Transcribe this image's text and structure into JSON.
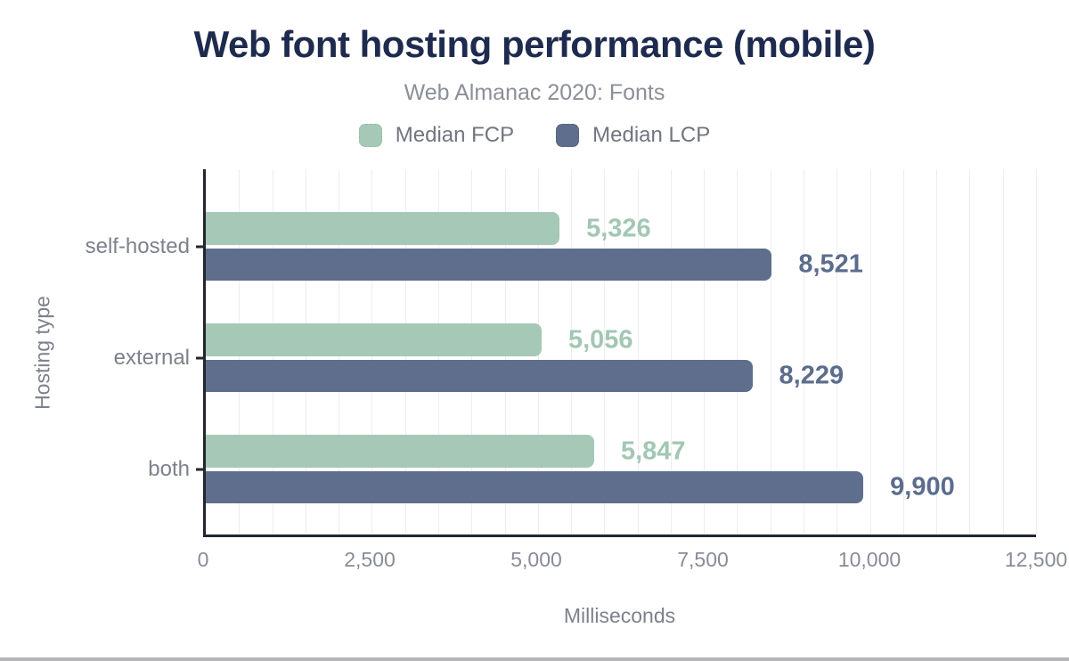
{
  "header": {
    "title": "Web font hosting performance (mobile)",
    "subtitle": "Web Almanac 2020: Fonts"
  },
  "colors": {
    "title": "#1e2b4e",
    "fcp_green": "#a5c9b6",
    "lcp_blue": "#5e6e8c",
    "fcp_label_text": "#a2c7b3",
    "lcp_label_text": "#5c6c8d",
    "axis_line": "#23262e",
    "gridline": "#ededf0",
    "muted_text": "#7c818b"
  },
  "legend": {
    "items": [
      {
        "label": "Median FCP",
        "color": "#a5c9b6"
      },
      {
        "label": "Median LCP",
        "color": "#5e6e8c"
      }
    ]
  },
  "chart_data": {
    "type": "bar",
    "orientation": "horizontal",
    "title": "Web font hosting performance (mobile)",
    "subtitle": "Web Almanac 2020: Fonts",
    "categories": [
      "self-hosted",
      "external",
      "both"
    ],
    "series": [
      {
        "name": "Median FCP",
        "color": "#a5c9b6",
        "label_color": "#a2c7b3",
        "values": [
          5326,
          5056,
          5847
        ],
        "value_labels": [
          "5,326",
          "5,056",
          "5,847"
        ]
      },
      {
        "name": "Median LCP",
        "color": "#5e6e8c",
        "label_color": "#5c6c8d",
        "values": [
          8521,
          8229,
          9900
        ],
        "value_labels": [
          "8,521",
          "8,229",
          "9,900"
        ]
      }
    ],
    "xlabel": "Milliseconds",
    "ylabel": "Hosting type",
    "xlim": [
      0,
      12500
    ],
    "x_ticks": [
      0,
      2500,
      5000,
      7500,
      10000,
      12500
    ],
    "x_tick_labels": [
      "0",
      "2,500",
      "5,000",
      "7,500",
      "10,000",
      "12,500"
    ],
    "minor_grid_step": 500,
    "grid": true,
    "legend_position": "top"
  }
}
